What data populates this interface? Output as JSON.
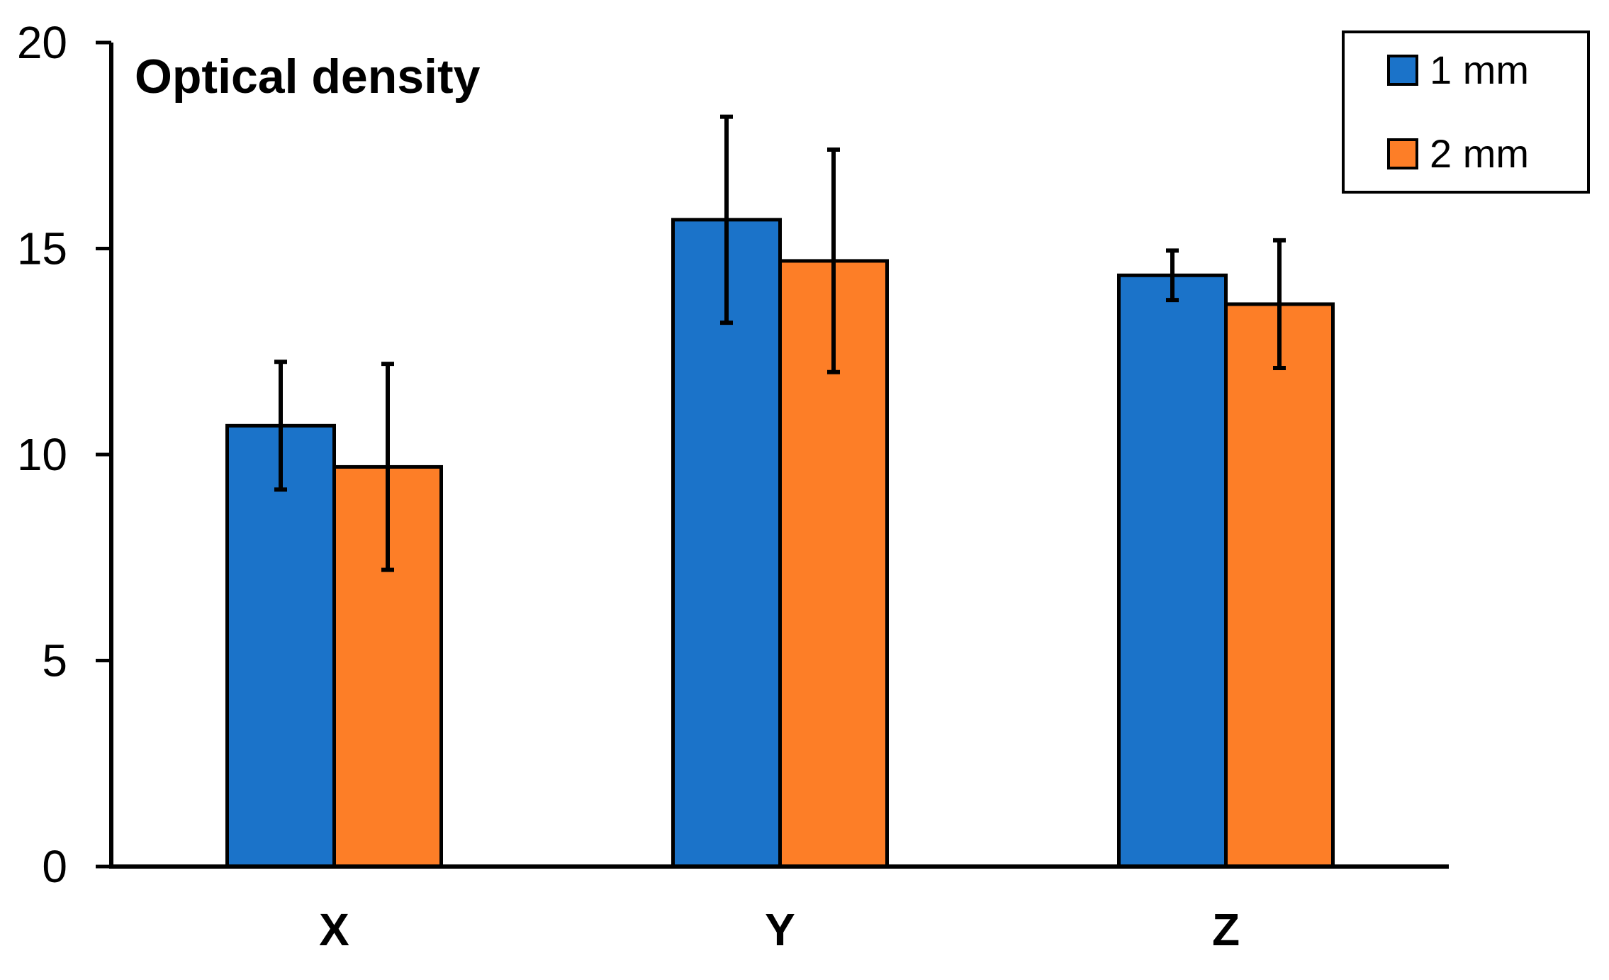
{
  "page": {
    "background": "#ffffff"
  },
  "chart_data": {
    "type": "bar",
    "title": "Optical density",
    "categories": [
      "X",
      "Y",
      "Z"
    ],
    "series": [
      {
        "name": "1 mm",
        "color": "#1B73C9",
        "values": [
          10.7,
          15.7,
          14.35
        ],
        "errors": [
          1.55,
          2.5,
          0.6
        ]
      },
      {
        "name": "2 mm",
        "color": "#FD7E27",
        "values": [
          9.7,
          14.7,
          13.65
        ],
        "errors": [
          2.5,
          2.7,
          1.55
        ]
      }
    ],
    "xlabel": "",
    "ylabel": "",
    "ylim": [
      0,
      20
    ],
    "y_ticks": [
      0,
      5,
      10,
      15,
      20
    ],
    "grid": false,
    "legend_position": "top-right",
    "legend_border_color": "#000000",
    "bar_border_color": "#000000",
    "error_bar_color": "#000000",
    "axis_color": "#000000",
    "text_color": "#000000"
  }
}
